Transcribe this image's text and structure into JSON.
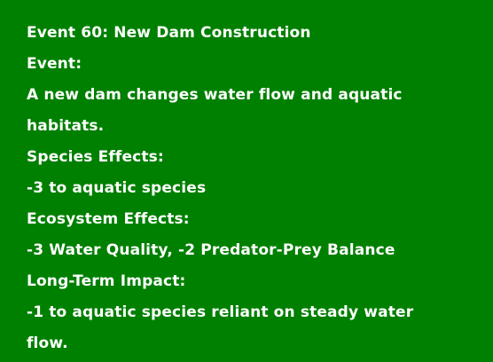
{
  "card": {
    "title": "Event 60: New Dam Construction",
    "event_heading": "Event:",
    "event_text_line1": "A new dam changes water flow and aquatic",
    "event_text_line2": "habitats.",
    "species_heading": "Species Effects:",
    "species_text": "-3 to aquatic species",
    "ecosystem_heading": "Ecosystem Effects:",
    "ecosystem_text": "-3 Water Quality, -2 Predator-Prey Balance",
    "longterm_heading": "Long-Term Impact:",
    "longterm_text_line1": "-1 to aquatic species reliant on steady water",
    "longterm_text_line2": "flow.",
    "background_color": "#008000",
    "text_color": "#ffffff"
  }
}
